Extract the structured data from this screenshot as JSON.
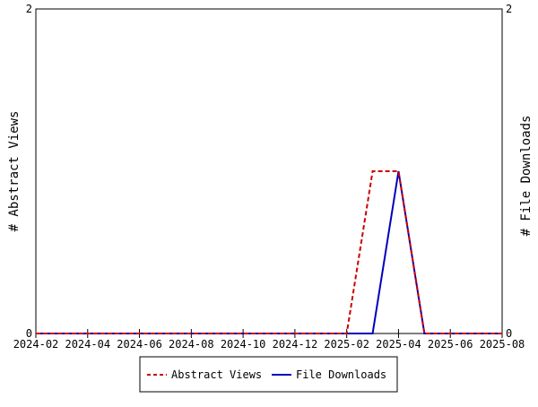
{
  "chart_data": {
    "type": "line",
    "ylabel_left": "# Abstract Views",
    "ylabel_right": "# File Downloads",
    "ylim": [
      0,
      2
    ],
    "yticks": [
      "0",
      "2"
    ],
    "x": [
      "2024-02",
      "2024-03",
      "2024-04",
      "2024-05",
      "2024-06",
      "2024-07",
      "2024-08",
      "2024-09",
      "2024-10",
      "2024-11",
      "2024-12",
      "2025-01",
      "2025-02",
      "2025-03",
      "2025-04",
      "2025-05",
      "2025-06",
      "2025-07",
      "2025-08"
    ],
    "xtick_labels": [
      "2024-02",
      "2024-04",
      "2024-06",
      "2024-08",
      "2024-10",
      "2024-12",
      "2025-02",
      "2025-04",
      "2025-06",
      "2025-08"
    ],
    "series": [
      {
        "name": "Abstract Views",
        "color": "#cc0000",
        "style": "dashed",
        "axis": "left",
        "values": [
          0,
          0,
          0,
          0,
          0,
          0,
          0,
          0,
          0,
          0,
          0,
          0,
          0,
          1,
          1,
          0,
          0,
          0,
          0
        ]
      },
      {
        "name": "File Downloads",
        "color": "#0000bb",
        "style": "solid",
        "axis": "right",
        "values": [
          0,
          0,
          0,
          0,
          0,
          0,
          0,
          0,
          0,
          0,
          0,
          0,
          0,
          0,
          1,
          0,
          0,
          0,
          0
        ]
      }
    ],
    "legend": "bottom-center"
  }
}
